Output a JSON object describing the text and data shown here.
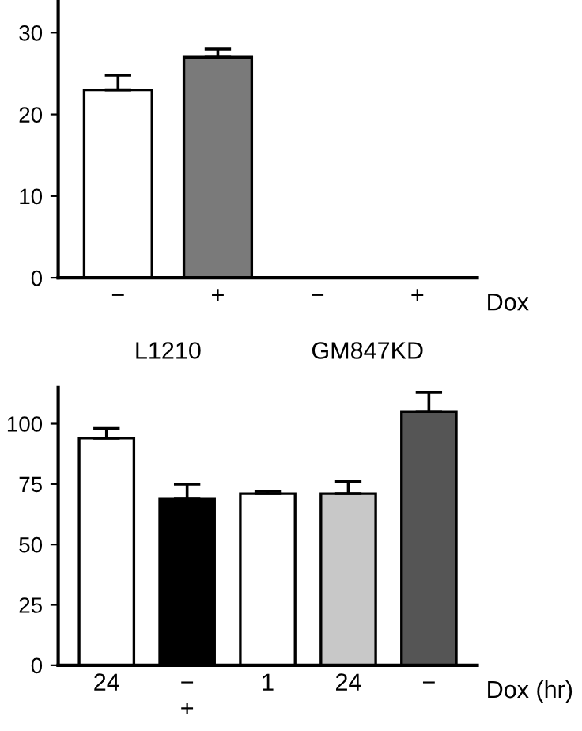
{
  "chart_data": [
    {
      "type": "bar",
      "categories": [
        "−",
        "+",
        "−",
        "+"
      ],
      "xlabel": "Dox",
      "values": [
        23,
        27,
        null,
        null
      ],
      "colors": [
        "#ffffff",
        "#7a7a7a",
        "#ffffff",
        "#000000"
      ],
      "errors": [
        [
          23,
          24.8
        ],
        [
          27,
          28
        ],
        null,
        null
      ],
      "ylim": [
        0,
        34
      ],
      "yticks": [
        0,
        10,
        20,
        30
      ],
      "grid": false,
      "annotations": [
        "L1210",
        "GM847KD"
      ]
    },
    {
      "type": "bar",
      "categories": [
        "24",
        "−\n+",
        "1",
        "24",
        "−"
      ],
      "xlabel": "Dox (hr)",
      "values": [
        94,
        69,
        71,
        71,
        105
      ],
      "colors": [
        "#ffffff",
        "#000000",
        "#ffffff",
        "#c8c8c8",
        "#555555"
      ],
      "errors": [
        [
          94,
          98
        ],
        [
          69,
          75
        ],
        [
          71,
          72
        ],
        [
          71,
          76
        ],
        [
          105,
          113
        ]
      ],
      "ylim": [
        0,
        115
      ],
      "yticks": [
        0,
        25,
        50,
        75,
        100
      ],
      "grid": false
    }
  ]
}
